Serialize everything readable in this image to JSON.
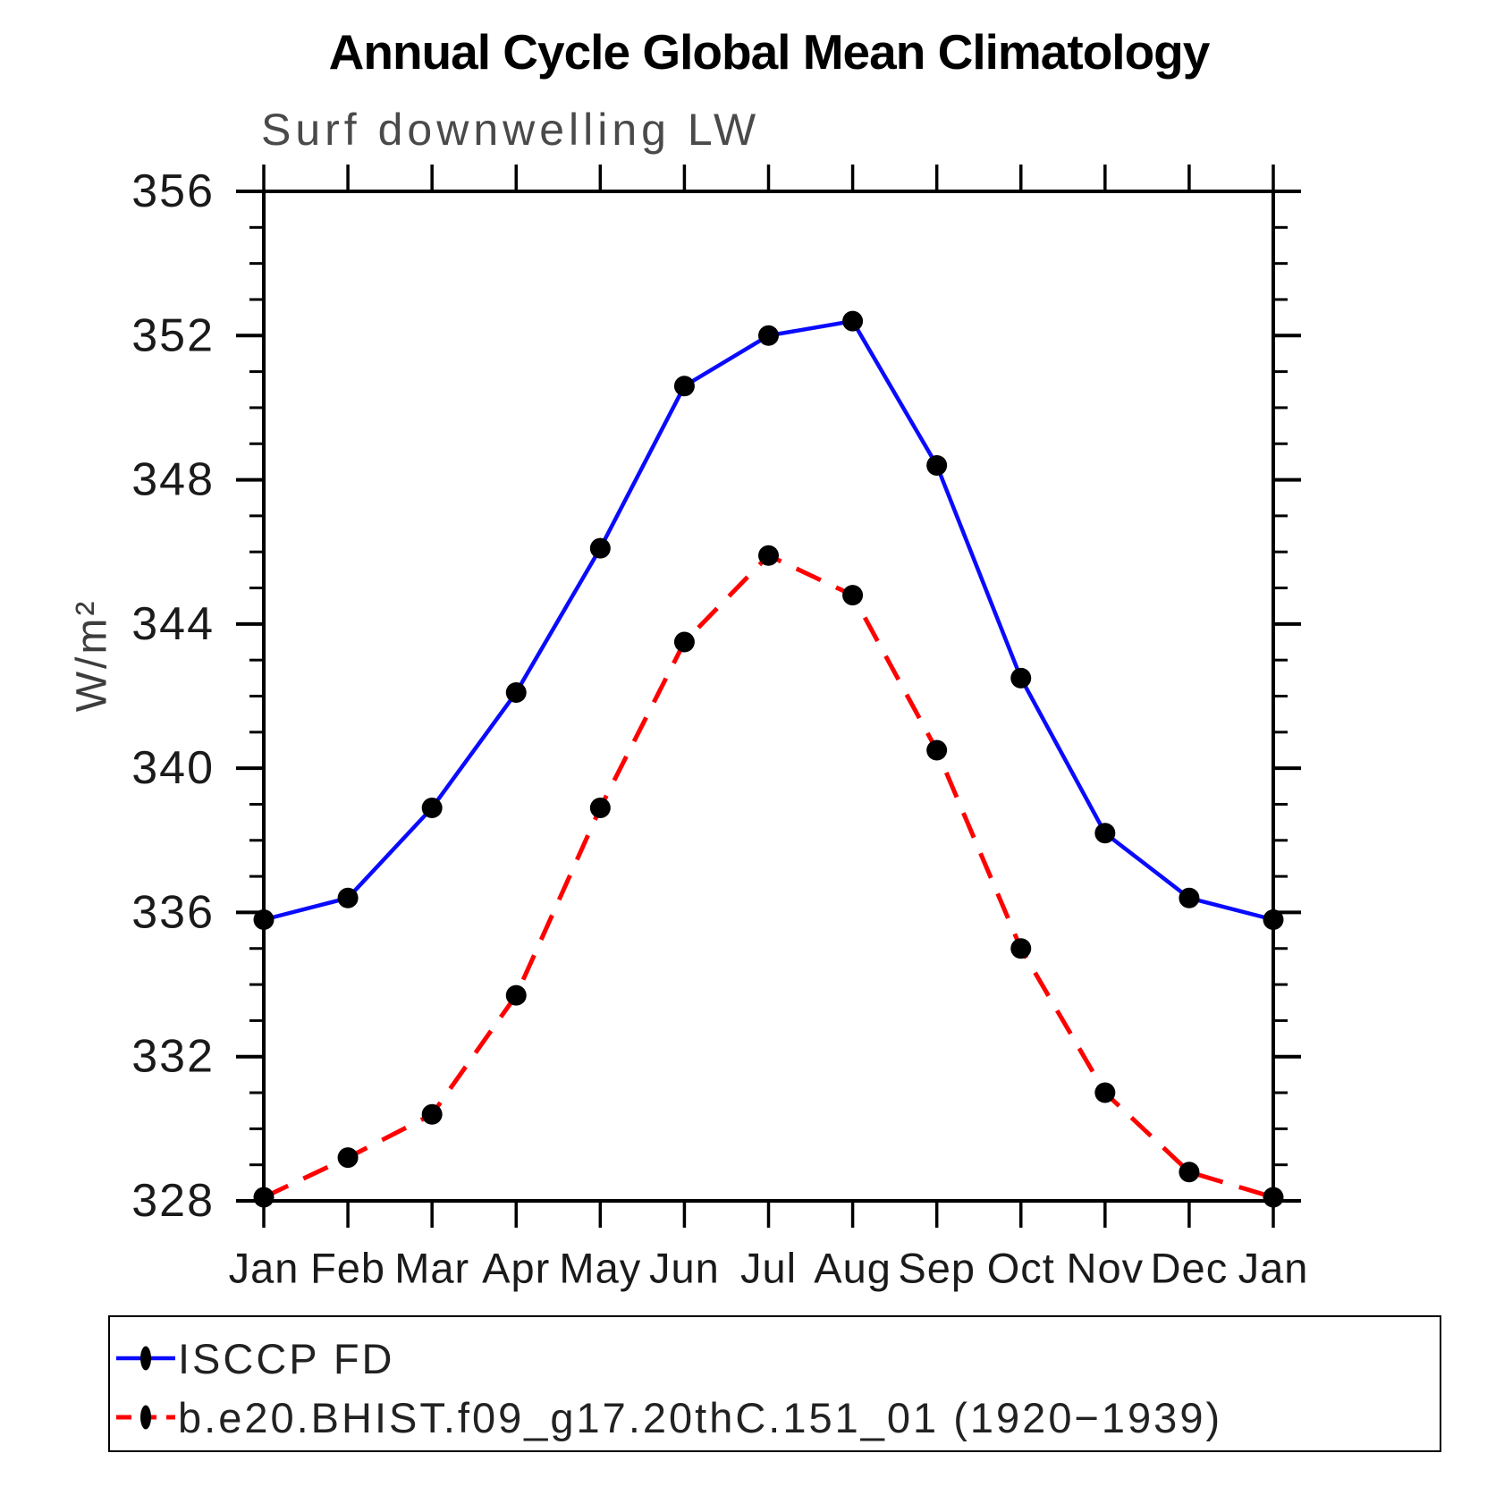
{
  "title": "Annual Cycle Global Mean Climatology",
  "subtitle": "Surf downwelling LW",
  "y_axis_label": "W/m²",
  "legend": {
    "entries": [
      {
        "label": "ISCCP FD",
        "color": "#0a0aff",
        "style": "solid"
      },
      {
        "label": "b.e20.BHIST.f09_g17.20thC.151_01 (1920−1939)",
        "color": "#ff0000",
        "style": "dashed"
      }
    ]
  },
  "chart_data": {
    "type": "line",
    "x": [
      "Jan",
      "Feb",
      "Mar",
      "Apr",
      "May",
      "Jun",
      "Jul",
      "Aug",
      "Sep",
      "Oct",
      "Nov",
      "Dec",
      "Jan"
    ],
    "series": [
      {
        "name": "ISCCP FD",
        "color": "#0a0aff",
        "line_style": "solid",
        "marker": "filled-circle",
        "marker_color": "#000000",
        "values": [
          335.8,
          336.4,
          338.9,
          342.1,
          346.1,
          350.6,
          352.0,
          352.4,
          348.4,
          342.5,
          338.2,
          336.4,
          335.8
        ]
      },
      {
        "name": "b.e20.BHIST.f09_g17.20thC.151_01 (1920−1939)",
        "color": "#ff0000",
        "line_style": "dashed",
        "marker": "filled-circle",
        "marker_color": "#000000",
        "values": [
          328.1,
          329.2,
          330.4,
          333.7,
          338.9,
          343.5,
          345.9,
          344.8,
          340.5,
          335.0,
          331.0,
          328.8,
          328.1
        ]
      }
    ],
    "title": "Annual Cycle Global Mean Climatology",
    "subtitle": "Surf downwelling LW",
    "xlabel": "",
    "ylabel": "W/m²",
    "ylim": [
      328,
      356
    ],
    "y_major_ticks": [
      328,
      332,
      336,
      340,
      344,
      348,
      352,
      356
    ],
    "y_minor_step": 1,
    "grid": false,
    "legend_position": "bottom"
  }
}
